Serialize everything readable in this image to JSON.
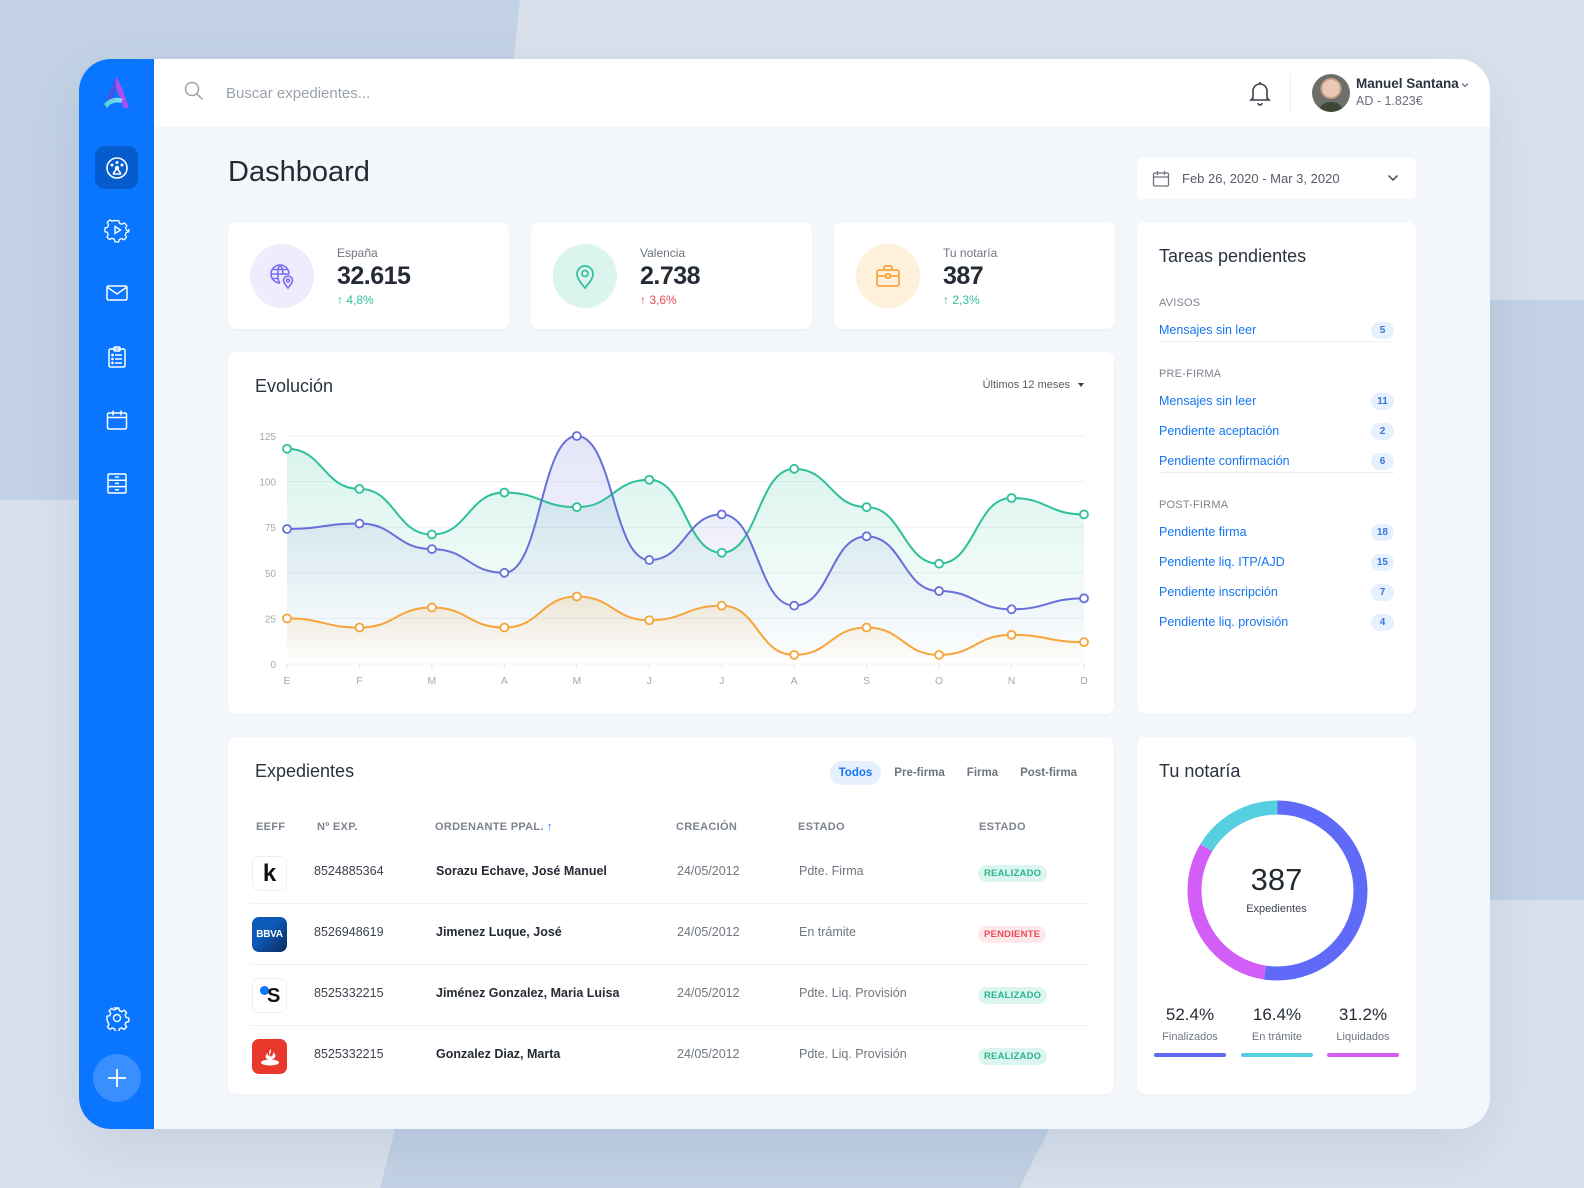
{
  "app": {
    "colors": {
      "brand": "#0a75ff",
      "accent_green": "#2fc09a",
      "accent_red": "#ea4a57",
      "accent_purple": "#6670d8",
      "accent_orange": "#f5a53a"
    }
  },
  "sidebar": {
    "items": [
      {
        "name": "dashboard",
        "icon": "dashboard-gauge-icon",
        "active": true
      },
      {
        "name": "processes",
        "icon": "gear-play-icon",
        "active": false
      },
      {
        "name": "messages",
        "icon": "envelope-icon",
        "active": false
      },
      {
        "name": "tasks",
        "icon": "clipboard-list-icon",
        "active": false
      },
      {
        "name": "calendar",
        "icon": "calendar-icon",
        "active": false
      },
      {
        "name": "archive",
        "icon": "file-cabinet-icon",
        "active": false
      }
    ],
    "settings_icon": "gear-icon",
    "add_icon": "plus-icon"
  },
  "header": {
    "search": {
      "placeholder": "Buscar expedientes..."
    },
    "user": {
      "name": "Manuel Santana",
      "subtitle": "AD - 1.823€"
    }
  },
  "page": {
    "title": "Dashboard",
    "date_range": "Feb 26, 2020 - Mar 3, 2020"
  },
  "stats": [
    {
      "label": "España",
      "value": "32.615",
      "delta": "↑ 4,8%",
      "trend": "up",
      "delta_color": "#2fc09a",
      "icon": "globe-pin-icon",
      "icon_color": "#7b6cf0",
      "icon_bg": "#efecfe"
    },
    {
      "label": "Valencia",
      "value": "2.738",
      "delta": "↑ 3,6%",
      "trend": "up",
      "delta_color": "#ea4a57",
      "icon": "map-pin-icon",
      "icon_color": "#2fc09a",
      "icon_bg": "#dcf4ee"
    },
    {
      "label": "Tu notaría",
      "value": "387",
      "delta": "↑ 2,3%",
      "trend": "up",
      "delta_color": "#2fc09a",
      "icon": "briefcase-icon",
      "icon_color": "#f5a53a",
      "icon_bg": "#fff0dc"
    }
  ],
  "evolution": {
    "title": "Evolución",
    "range_select": "Últimos 12 meses"
  },
  "chart_data": {
    "type": "line",
    "title": "Evolución",
    "xlabel": "",
    "ylabel": "",
    "categories": [
      "E",
      "F",
      "M",
      "A",
      "M",
      "J",
      "J",
      "A",
      "S",
      "O",
      "N",
      "D"
    ],
    "y_ticks": [
      0,
      25,
      50,
      75,
      100,
      125
    ],
    "ylim": [
      0,
      125
    ],
    "grid": true,
    "legend": null,
    "series": [
      {
        "name": "green",
        "color": "#2fc09a",
        "values": [
          118,
          96,
          71,
          94,
          86,
          101,
          61,
          107,
          86,
          55,
          91,
          82
        ]
      },
      {
        "name": "purple",
        "color": "#6670d8",
        "values": [
          74,
          77,
          63,
          50,
          125,
          57,
          82,
          32,
          70,
          40,
          30,
          36
        ]
      },
      {
        "name": "orange",
        "color": "#f5a53a",
        "values": [
          25,
          20,
          31,
          20,
          37,
          24,
          32,
          5,
          20,
          5,
          16,
          12
        ]
      }
    ]
  },
  "tasks": {
    "title": "Tareas pendientes",
    "sections": [
      {
        "label": "AVISOS",
        "items": [
          {
            "label": "Mensajes sin leer",
            "count": "5"
          }
        ]
      },
      {
        "label": "PRE-FIRMA",
        "items": [
          {
            "label": "Mensajes sin leer",
            "count": "11"
          },
          {
            "label": "Pendiente aceptación",
            "count": "2"
          },
          {
            "label": "Pendiente confirmación",
            "count": "6"
          }
        ]
      },
      {
        "label": "POST-FIRMA",
        "items": [
          {
            "label": "Pendiente firma",
            "count": "18"
          },
          {
            "label": "Pendiente liq. ITP/AJD",
            "count": "15"
          },
          {
            "label": "Pendiente inscripción",
            "count": "7"
          },
          {
            "label": "Pendiente liq. provisión",
            "count": "4"
          }
        ]
      }
    ]
  },
  "files": {
    "title": "Expedientes",
    "tabs": [
      {
        "label": "Todos",
        "active": true
      },
      {
        "label": "Pre-firma",
        "active": false
      },
      {
        "label": "Firma",
        "active": false
      },
      {
        "label": "Post-firma",
        "active": false
      }
    ],
    "columns": [
      "EEFF",
      "Nº EXP.",
      "ORDENANTE PPAL.",
      "CREACIÓN",
      "ESTADO",
      "ESTADO"
    ],
    "sort_indicator": "↑",
    "rows": [
      {
        "bank": "Kutxabank",
        "logo": "k",
        "number": "8524885364",
        "name": "Sorazu Echave, José Manuel",
        "created": "24/05/2012",
        "state": "Pdte. Firma",
        "status": "REALIZADO",
        "status_type": "ok"
      },
      {
        "bank": "BBVA",
        "logo": "BBVA",
        "number": "8526948619",
        "name": "Jimenez Luque, José",
        "created": "24/05/2012",
        "state": "En trámite",
        "status": "PENDIENTE",
        "status_type": "pend"
      },
      {
        "bank": "Banco Sabadell",
        "logo": "S",
        "number": "8525332215",
        "name": "Jiménez Gonzalez, Maria Luisa",
        "created": "24/05/2012",
        "state": "Pdte. Liq. Provisión",
        "status": "REALIZADO",
        "status_type": "ok"
      },
      {
        "bank": "Santander",
        "logo": "flame",
        "number": "8525332215",
        "name": "Gonzalez Diaz, Marta",
        "created": "24/05/2012",
        "state": "Pdte. Liq. Provisión",
        "status": "REALIZADO",
        "status_type": "ok"
      }
    ]
  },
  "notary": {
    "title": "Tu notaría",
    "total": "387",
    "total_label": "Expedientes",
    "segments": [
      {
        "label": "Finalizados",
        "value": "52.4%",
        "color": "#5f6af8"
      },
      {
        "label": "En trámite",
        "value": "16.4%",
        "color": "#56cfe1"
      },
      {
        "label": "Liquidados",
        "value": "31.2%",
        "color": "#d35ef7"
      }
    ]
  }
}
